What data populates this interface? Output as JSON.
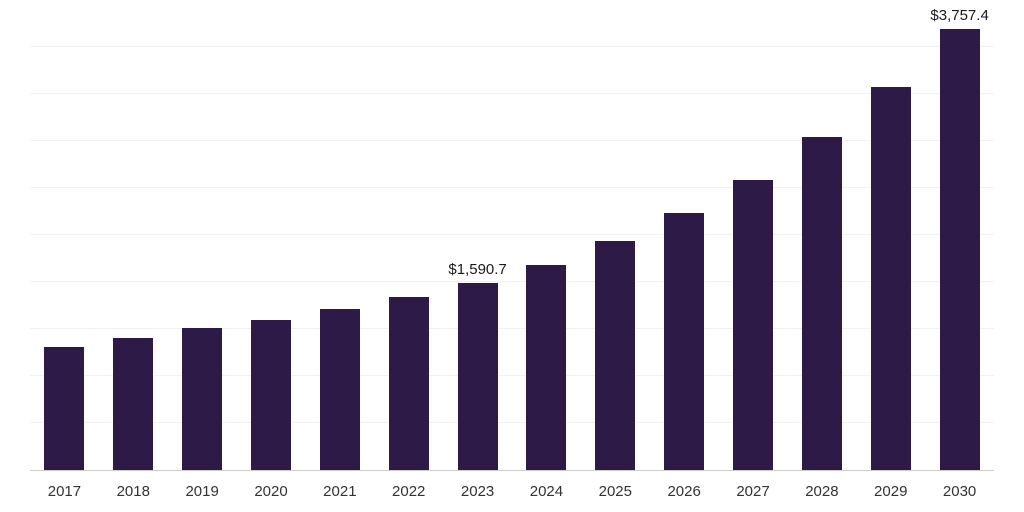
{
  "chart_data": {
    "type": "bar",
    "title": "",
    "xlabel": "",
    "ylabel": "",
    "categories": [
      "2017",
      "2018",
      "2019",
      "2020",
      "2021",
      "2022",
      "2023",
      "2024",
      "2025",
      "2026",
      "2027",
      "2028",
      "2029",
      "2030"
    ],
    "values": [
      1050,
      1120,
      1210,
      1280,
      1370,
      1470,
      1590.7,
      1745,
      1950,
      2190,
      2470,
      2830,
      3260,
      3757.4
    ],
    "data_labels": [
      "",
      "",
      "",
      "",
      "",
      "",
      "$1,590.7",
      "",
      "",
      "",
      "",
      "",
      "",
      "$3,757.4"
    ],
    "ylim": [
      0,
      4000
    ],
    "gridline_step": 400,
    "grid": "horizontal",
    "legend": "none",
    "bar_color": "#2e1a47"
  },
  "colors": {
    "background": "#ffffff",
    "bar": "#2e1a47",
    "gridline": "#f2f2f2",
    "axis_line": "#cccccc",
    "tick_label": "#333333",
    "data_label": "#1a1a1a"
  }
}
